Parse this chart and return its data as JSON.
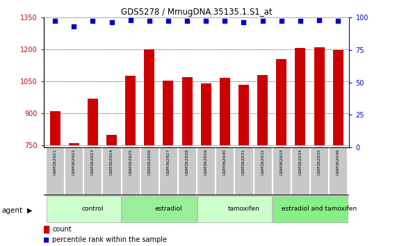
{
  "title": "GDS5278 / MmugDNA.35135.1.S1_at",
  "samples": [
    "GSM362921",
    "GSM362922",
    "GSM362923",
    "GSM362924",
    "GSM362925",
    "GSM362926",
    "GSM362927",
    "GSM362928",
    "GSM362929",
    "GSM362930",
    "GSM362931",
    "GSM362932",
    "GSM362933",
    "GSM362934",
    "GSM362935",
    "GSM362936"
  ],
  "counts": [
    910,
    762,
    970,
    800,
    1075,
    1200,
    1055,
    1070,
    1040,
    1065,
    1035,
    1080,
    1155,
    1205,
    1210,
    1195
  ],
  "percentile_ranks": [
    97,
    93,
    97,
    96,
    98,
    97,
    97,
    97,
    97,
    97,
    96,
    97,
    97,
    97,
    98,
    97
  ],
  "ylim_left": [
    740,
    1350
  ],
  "ylim_right": [
    0,
    100
  ],
  "yticks_left": [
    750,
    900,
    1050,
    1200,
    1350
  ],
  "yticks_right": [
    0,
    25,
    50,
    75,
    100
  ],
  "bar_color": "#cc0000",
  "dot_color": "#0000cc",
  "groups": [
    {
      "label": "control",
      "start": 0,
      "end": 4,
      "color": "#ccffcc"
    },
    {
      "label": "estradiol",
      "start": 4,
      "end": 8,
      "color": "#99ee99"
    },
    {
      "label": "tamoxifen",
      "start": 8,
      "end": 12,
      "color": "#ccffcc"
    },
    {
      "label": "estradiol and tamoxifen",
      "start": 12,
      "end": 16,
      "color": "#88ee88"
    }
  ],
  "group_row_label": "agent",
  "legend_count_label": "count",
  "legend_pct_label": "percentile rank within the sample",
  "left_axis_color": "#cc0000",
  "right_axis_color": "#0000cc",
  "bar_bottom": 750,
  "sample_bg": "#cccccc",
  "fig_bg": "#ffffff"
}
